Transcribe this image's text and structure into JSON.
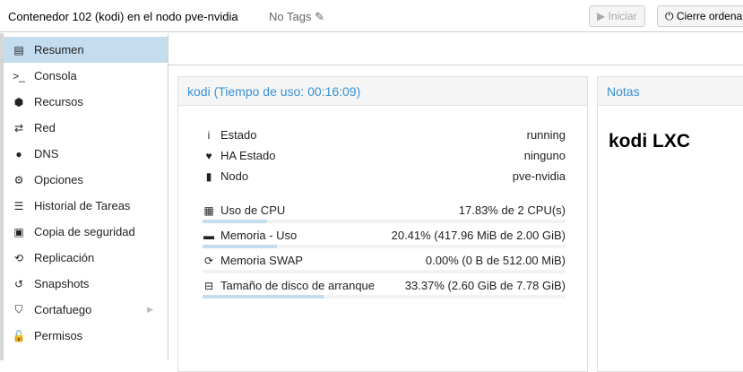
{
  "header": {
    "title": "Contenedor 102 (kodi) en el nodo pve-nvidia",
    "tags": "No Tags",
    "start_label": "Iniciar",
    "shutdown_label": "Cierre ordena"
  },
  "sidebar": {
    "items": [
      {
        "label": "Resumen",
        "icon": "book-icon",
        "glyph": "▤",
        "selected": true
      },
      {
        "label": "Consola",
        "icon": "terminal-icon",
        "glyph": ">_"
      },
      {
        "label": "Recursos",
        "icon": "cube-icon",
        "glyph": "⬢"
      },
      {
        "label": "Red",
        "icon": "exchange-icon",
        "glyph": "⇄"
      },
      {
        "label": "DNS",
        "icon": "globe-icon",
        "glyph": "●"
      },
      {
        "label": "Opciones",
        "icon": "gear-icon",
        "glyph": "⚙"
      },
      {
        "label": "Historial de Tareas",
        "icon": "list-icon",
        "glyph": "☰"
      },
      {
        "label": "Copia de seguridad",
        "icon": "floppy-icon",
        "glyph": "▣"
      },
      {
        "label": "Replicación",
        "icon": "retweet-icon",
        "glyph": "⟲"
      },
      {
        "label": "Snapshots",
        "icon": "history-icon",
        "glyph": "↺"
      },
      {
        "label": "Cortafuego",
        "icon": "shield-icon",
        "glyph": "⛉",
        "submenu": true
      },
      {
        "label": "Permisos",
        "icon": "unlock-icon",
        "glyph": "🔓"
      }
    ]
  },
  "status": {
    "title": "kodi (Tiempo de uso: 00:16:09)",
    "rows": [
      {
        "label": "Estado",
        "value": "running",
        "icon": "info-icon",
        "glyph": "i"
      },
      {
        "label": "HA Estado",
        "value": "ninguno",
        "icon": "heartbeat-icon",
        "glyph": "♥"
      },
      {
        "label": "Nodo",
        "value": "pve-nvidia",
        "icon": "server-icon",
        "glyph": "▮"
      }
    ],
    "usage": [
      {
        "label": "Uso de CPU",
        "value": "17.83% de 2 CPU(s)",
        "percent": 17.83,
        "icon": "cpu-icon",
        "glyph": "▦"
      },
      {
        "label": "Memoria - Uso",
        "value": "20.41% (417.96 MiB de 2.00 GiB)",
        "percent": 20.41,
        "icon": "memory-icon",
        "glyph": "▬"
      },
      {
        "label": "Memoria SWAP",
        "value": "0.00% (0 B de 512.00 MiB)",
        "percent": 0,
        "icon": "refresh-icon",
        "glyph": "⟳"
      },
      {
        "label": "Tamaño de disco de arranque",
        "value": "33.37% (2.60 GiB de 7.78 GiB)",
        "percent": 33.37,
        "icon": "hdd-icon",
        "glyph": "⊟"
      }
    ]
  },
  "notes": {
    "title": "Notas",
    "content": "kodi LXC"
  }
}
